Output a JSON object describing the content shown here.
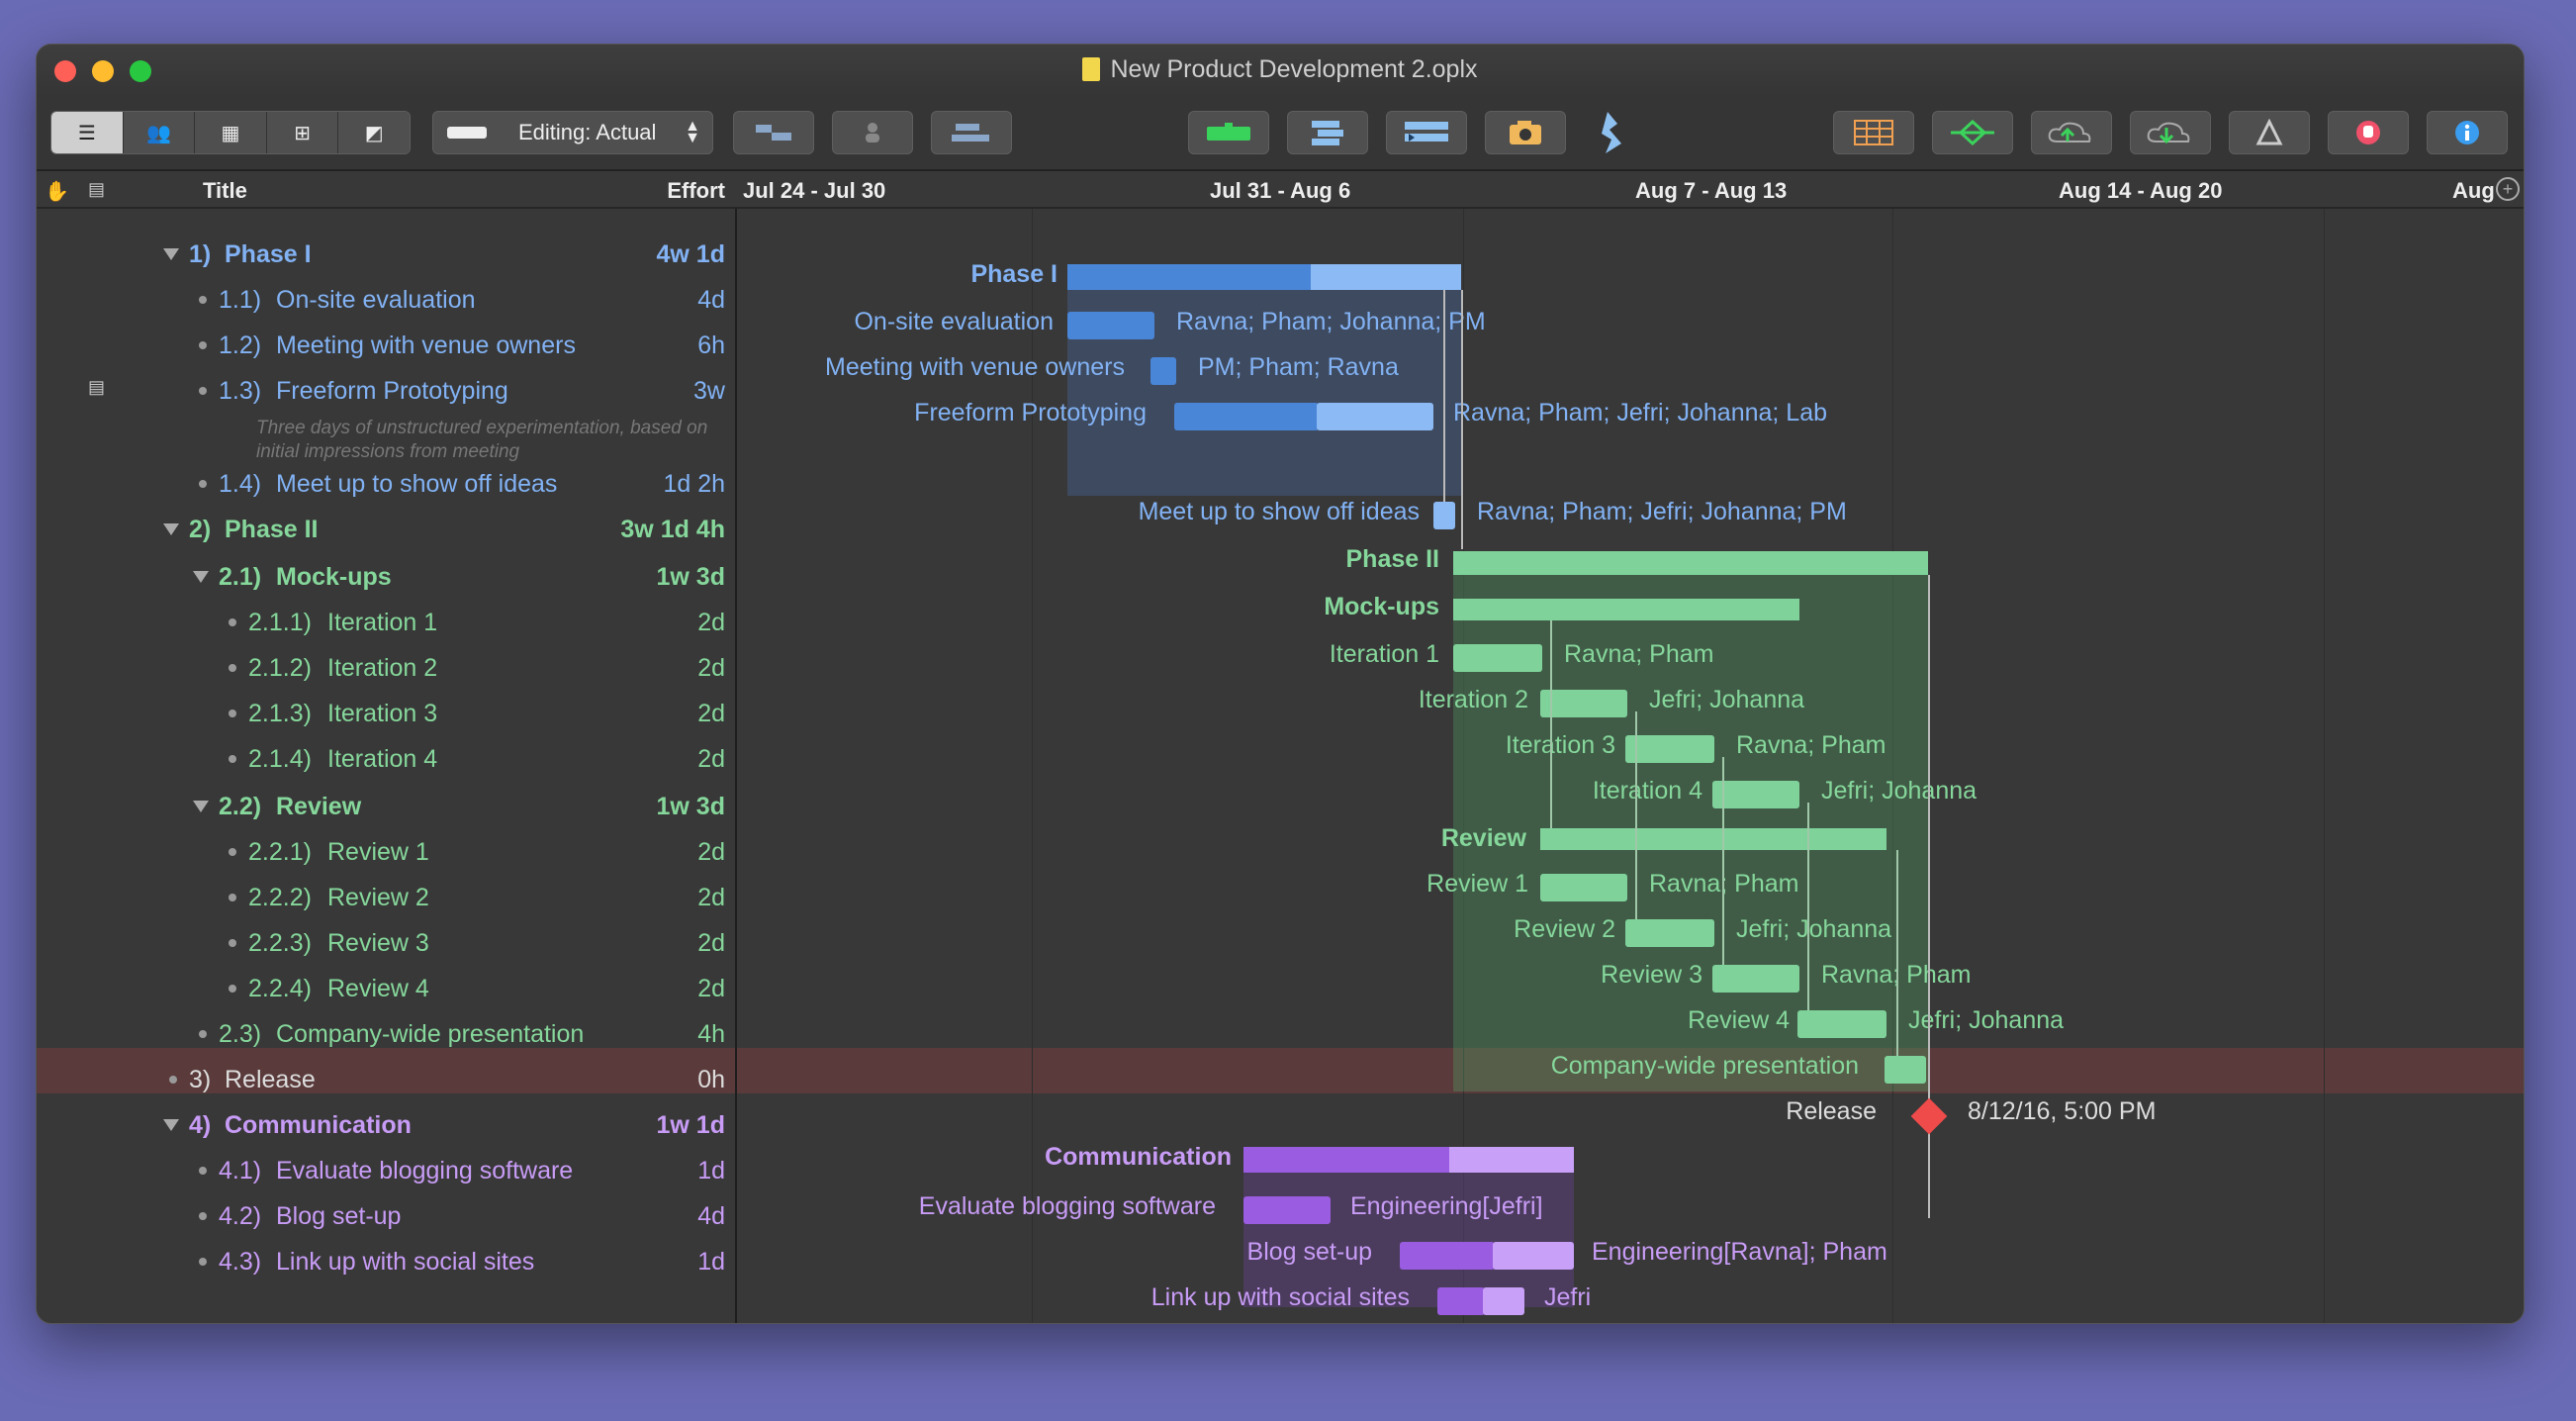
{
  "window": {
    "title": "New Product Development 2.oplx"
  },
  "toolbar": {
    "editing_label": "Editing: Actual",
    "view_modes": [
      "task-view",
      "resource-view",
      "calendar-view",
      "network-view",
      "styles-view"
    ]
  },
  "outline": {
    "col_title": "Title",
    "col_effort": "Effort",
    "rows": [
      {
        "num": "1)",
        "title": "Phase I",
        "effort": "4w 1d"
      },
      {
        "num": "1.1)",
        "title": "On-site evaluation",
        "effort": "4d"
      },
      {
        "num": "1.2)",
        "title": "Meeting with venue owners",
        "effort": "6h"
      },
      {
        "num": "1.3)",
        "title": "Freeform Prototyping",
        "effort": "3w",
        "note": "Three days of unstructured experimentation, based on initial impressions from meeting"
      },
      {
        "num": "1.4)",
        "title": "Meet up to show off ideas",
        "effort": "1d 2h"
      },
      {
        "num": "2)",
        "title": "Phase II",
        "effort": "3w 1d 4h"
      },
      {
        "num": "2.1)",
        "title": "Mock-ups",
        "effort": "1w 3d"
      },
      {
        "num": "2.1.1)",
        "title": "Iteration 1",
        "effort": "2d"
      },
      {
        "num": "2.1.2)",
        "title": "Iteration 2",
        "effort": "2d"
      },
      {
        "num": "2.1.3)",
        "title": "Iteration 3",
        "effort": "2d"
      },
      {
        "num": "2.1.4)",
        "title": "Iteration 4",
        "effort": "2d"
      },
      {
        "num": "2.2)",
        "title": "Review",
        "effort": "1w 3d"
      },
      {
        "num": "2.2.1)",
        "title": "Review 1",
        "effort": "2d"
      },
      {
        "num": "2.2.2)",
        "title": "Review 2",
        "effort": "2d"
      },
      {
        "num": "2.2.3)",
        "title": "Review 3",
        "effort": "2d"
      },
      {
        "num": "2.2.4)",
        "title": "Review 4",
        "effort": "2d"
      },
      {
        "num": "2.3)",
        "title": "Company-wide presentation",
        "effort": "4h"
      },
      {
        "num": "3)",
        "title": "Release",
        "effort": "0h"
      },
      {
        "num": "4)",
        "title": "Communication",
        "effort": "1w 1d"
      },
      {
        "num": "4.1)",
        "title": "Evaluate blogging software",
        "effort": "1d"
      },
      {
        "num": "4.2)",
        "title": "Blog set-up",
        "effort": "4d"
      },
      {
        "num": "4.3)",
        "title": "Link up with social sites",
        "effort": "1d"
      }
    ]
  },
  "gantt": {
    "weeks": [
      "Jul 24 - Jul 30",
      "Jul 31 - Aug 6",
      "Aug 7 - Aug 13",
      "Aug 14 - Aug 20",
      "Aug"
    ],
    "labels": {
      "phase1": "Phase I",
      "onsite": "On-site evaluation",
      "meeting": "Meeting with venue owners",
      "freeform": "Freeform Prototyping",
      "meetup": "Meet up to show off ideas",
      "phase2": "Phase II",
      "mockups": "Mock-ups",
      "it1": "Iteration 1",
      "it2": "Iteration 2",
      "it3": "Iteration 3",
      "it4": "Iteration 4",
      "review": "Review",
      "rv1": "Review 1",
      "rv2": "Review 2",
      "rv3": "Review 3",
      "rv4": "Review 4",
      "cwp": "Company-wide presentation",
      "release": "Release",
      "comm": "Communication",
      "evalblog": "Evaluate blogging software",
      "blogsetup": "Blog set-up",
      "linkup": "Link up with social sites"
    },
    "resources": {
      "onsite": "Ravna; Pham; Johanna; PM",
      "meeting": "PM; Pham; Ravna",
      "freeform": "Ravna; Pham; Jefri; Johanna; Lab",
      "meetup": "Ravna; Pham; Jefri; Johanna; PM",
      "it1": "Ravna; Pham",
      "it2": "Jefri; Johanna",
      "it3": "Ravna; Pham",
      "it4": "Jefri; Johanna",
      "rv1": "Ravna; Pham",
      "rv2": "Jefri; Johanna",
      "rv3": "Ravna; Pham",
      "rv4": "Jefri; Johanna",
      "release_date": "8/12/16, 5:00 PM",
      "evalblog": "Engineering[Jefri]",
      "blogsetup": "Engineering[Ravna]; Pham",
      "linkup": "Jefri"
    }
  },
  "colors": {
    "phase1": "#4a86d8",
    "phase2": "#7fd39a",
    "communication": "#9a5ce0",
    "milestone": "#ef4b4b"
  }
}
